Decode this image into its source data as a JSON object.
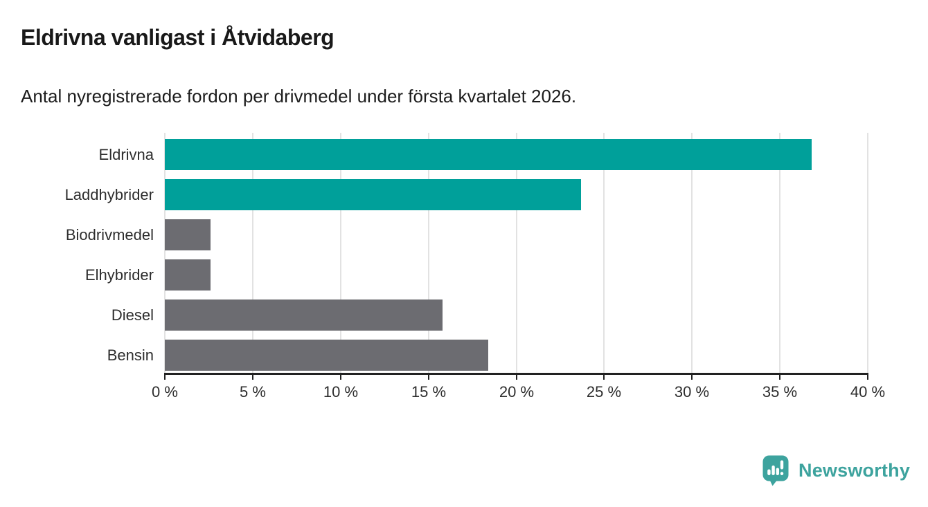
{
  "header": {
    "title": "Eldrivna vanligast i Åtvidaberg",
    "subtitle": "Antal nyregistrerade fordon per drivmedel under första kvartalet 2026."
  },
  "chart_data": {
    "type": "bar",
    "orientation": "horizontal",
    "title": "Eldrivna vanligast i Åtvidaberg",
    "subtitle": "Antal nyregistrerade fordon per drivmedel under första kvartalet 2026.",
    "categories": [
      "Eldrivna",
      "Laddhybrider",
      "Biodrivmedel",
      "Elhybrider",
      "Diesel",
      "Bensin"
    ],
    "values": [
      36.8,
      23.7,
      2.6,
      2.6,
      15.8,
      18.4
    ],
    "unit": "%",
    "bar_colors": [
      "#00a09a",
      "#00a09a",
      "#6c6c71",
      "#6c6c71",
      "#6c6c71",
      "#6c6c71"
    ],
    "xlim": [
      0,
      40
    ],
    "x_tick_step": 5,
    "x_tick_labels": [
      "0 %",
      "5 %",
      "10 %",
      "15 %",
      "20 %",
      "25 %",
      "30 %",
      "35 %",
      "40 %"
    ],
    "grid": "vertical-gridlines-on",
    "legend": "none",
    "colors": {
      "accent": "#00a09a",
      "muted": "#6c6c71",
      "gridline": "#e2e2e2",
      "axis": "#222222"
    }
  },
  "footer": {
    "brand": "Newsworthy",
    "brand_color": "#3da39e",
    "logo_icon": "speech-bubble-bar-chart-icon"
  }
}
